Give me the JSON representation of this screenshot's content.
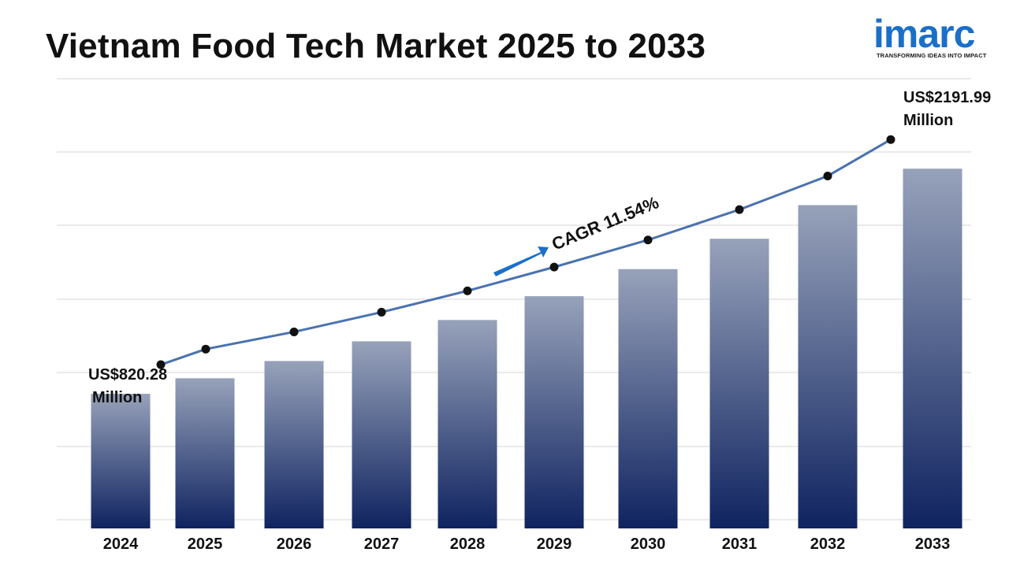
{
  "title": "Vietnam Food Tech Market 2025 to 2033",
  "logo": {
    "wordmark": "imarc",
    "tagline": "TRANSFORMING IDEAS INTO IMPACT",
    "color": "#1a6fc9"
  },
  "chart_data": {
    "type": "bar",
    "title": "Vietnam Food Tech Market 2025 to 2033",
    "categories": [
      "2024",
      "2025",
      "2026",
      "2027",
      "2028",
      "2029",
      "2030",
      "2031",
      "2032",
      "2033"
    ],
    "series": [
      {
        "values": [
          820.28,
          915,
          1020,
          1140,
          1270,
          1415,
          1580,
          1765,
          1970,
          2191.99
        ]
      }
    ],
    "trend_line": true,
    "grid": true,
    "ylim": [
      0,
      2740
    ],
    "first_label": {
      "line1": "US$820.28",
      "line2": "Million"
    },
    "last_label": {
      "line1": "US$2191.99",
      "line2": "Million"
    },
    "cagr_label": "CAGR 11.54%",
    "colors": {
      "bar_top": "#97a2ba",
      "bar_bottom": "#0f2360",
      "line": "#4a72b0",
      "marker": "#111111",
      "arrow": "#1a6fc9",
      "grid": "#d6d6d6"
    }
  }
}
